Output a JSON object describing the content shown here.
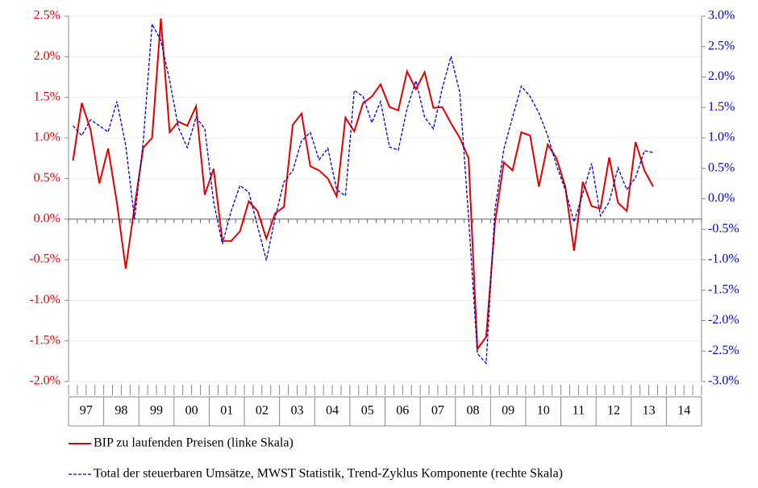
{
  "chart_data": {
    "type": "line",
    "categories": [
      "97",
      null,
      null,
      null,
      "98",
      null,
      null,
      null,
      "99",
      null,
      null,
      null,
      "00",
      null,
      null,
      null,
      "01",
      null,
      null,
      null,
      "02",
      null,
      null,
      null,
      "03",
      null,
      null,
      null,
      "04",
      null,
      null,
      null,
      "05",
      null,
      null,
      null,
      "06",
      null,
      null,
      null,
      "07",
      null,
      null,
      null,
      "08",
      null,
      null,
      null,
      "09",
      null,
      null,
      null,
      "10",
      null,
      null,
      null,
      "11",
      null,
      null,
      null,
      "12",
      null,
      null,
      null,
      "13",
      null,
      null,
      null,
      "14",
      null,
      null,
      null
    ],
    "series": [
      {
        "name": "BIP zu laufenden Preisen (linke Skala)",
        "color": "#e00000",
        "axis": "y",
        "values": [
          0.72,
          1.43,
          1.1,
          0.44,
          0.87,
          0.2,
          -0.61,
          0.15,
          0.88,
          1.0,
          2.47,
          1.07,
          1.2,
          1.15,
          1.39,
          0.3,
          0.62,
          -0.27,
          -0.27,
          -0.15,
          0.22,
          0.1,
          -0.24,
          0.07,
          0.15,
          1.16,
          1.3,
          0.65,
          0.6,
          0.5,
          0.28,
          1.25,
          1.08,
          1.43,
          1.51,
          1.66,
          1.38,
          1.34,
          1.82,
          1.6,
          1.81,
          1.37,
          1.38,
          1.18,
          1.0,
          0.75,
          -1.6,
          -1.45,
          -0.05,
          0.7,
          0.6,
          1.07,
          1.03,
          0.4,
          0.92,
          0.75,
          0.4,
          -0.39,
          0.46,
          0.16,
          0.13,
          0.76,
          0.2,
          0.1,
          0.95,
          0.6,
          0.4,
          null,
          null,
          null,
          null,
          null
        ]
      },
      {
        "name": "Total der steuerbaren Umsätze, MWST Statistik, Trend-Zyklus Komponente (rechte Skala)",
        "color": "#0000cc",
        "axis": "y2",
        "dashed": true,
        "values": [
          1.2,
          1.04,
          1.3,
          1.2,
          1.1,
          1.6,
          0.88,
          -0.34,
          0.95,
          2.87,
          2.6,
          1.94,
          1.17,
          0.84,
          1.34,
          1.15,
          -0.05,
          -0.74,
          -0.2,
          0.22,
          0.11,
          -0.45,
          -1.01,
          -0.31,
          0.28,
          0.46,
          0.95,
          1.09,
          0.64,
          0.83,
          0.15,
          0.05,
          1.78,
          1.68,
          1.25,
          1.6,
          0.85,
          0.8,
          1.48,
          1.94,
          1.34,
          1.15,
          1.81,
          2.34,
          1.74,
          -0.31,
          -2.54,
          -2.7,
          -0.18,
          0.81,
          1.34,
          1.85,
          1.68,
          1.41,
          1.04,
          0.55,
          0.15,
          -0.38,
          0.09,
          0.58,
          -0.28,
          -0.05,
          0.51,
          0.15,
          0.35,
          0.79,
          0.76,
          null,
          null,
          null,
          null,
          null
        ]
      }
    ],
    "ylim": [
      -2.0,
      2.5
    ],
    "yticks": [
      {
        "value": -2.0,
        "label": "-2.0%"
      },
      {
        "value": -1.5,
        "label": "-1.5%"
      },
      {
        "value": -1.0,
        "label": "-1.0%"
      },
      {
        "value": -0.5,
        "label": "-0.5%"
      },
      {
        "value": 0.0,
        "label": "0.0%"
      },
      {
        "value": 0.5,
        "label": "0.5%"
      },
      {
        "value": 1.0,
        "label": "1.0%"
      },
      {
        "value": 1.5,
        "label": "1.5%"
      },
      {
        "value": 2.0,
        "label": "2.0%"
      },
      {
        "value": 2.5,
        "label": "2.5%"
      }
    ],
    "y2lim": [
      -3.0,
      3.0
    ],
    "y2ticks": [
      {
        "value": -3.0,
        "label": "-3.0%"
      },
      {
        "value": -2.5,
        "label": "-2.5%"
      },
      {
        "value": -2.0,
        "label": "-2.0%"
      },
      {
        "value": -1.5,
        "label": "-1.5%"
      },
      {
        "value": -1.0,
        "label": "-1.0%"
      },
      {
        "value": -0.5,
        "label": "-0.5%"
      },
      {
        "value": 0.0,
        "label": "0.0%"
      },
      {
        "value": 0.5,
        "label": "0.5%"
      },
      {
        "value": 1.0,
        "label": "1.0%"
      },
      {
        "value": 1.5,
        "label": "1.5%"
      },
      {
        "value": 2.0,
        "label": "2.0%"
      },
      {
        "value": 2.5,
        "label": "2.5%"
      },
      {
        "value": 3.0,
        "label": "3.0%"
      }
    ],
    "grid": true
  }
}
